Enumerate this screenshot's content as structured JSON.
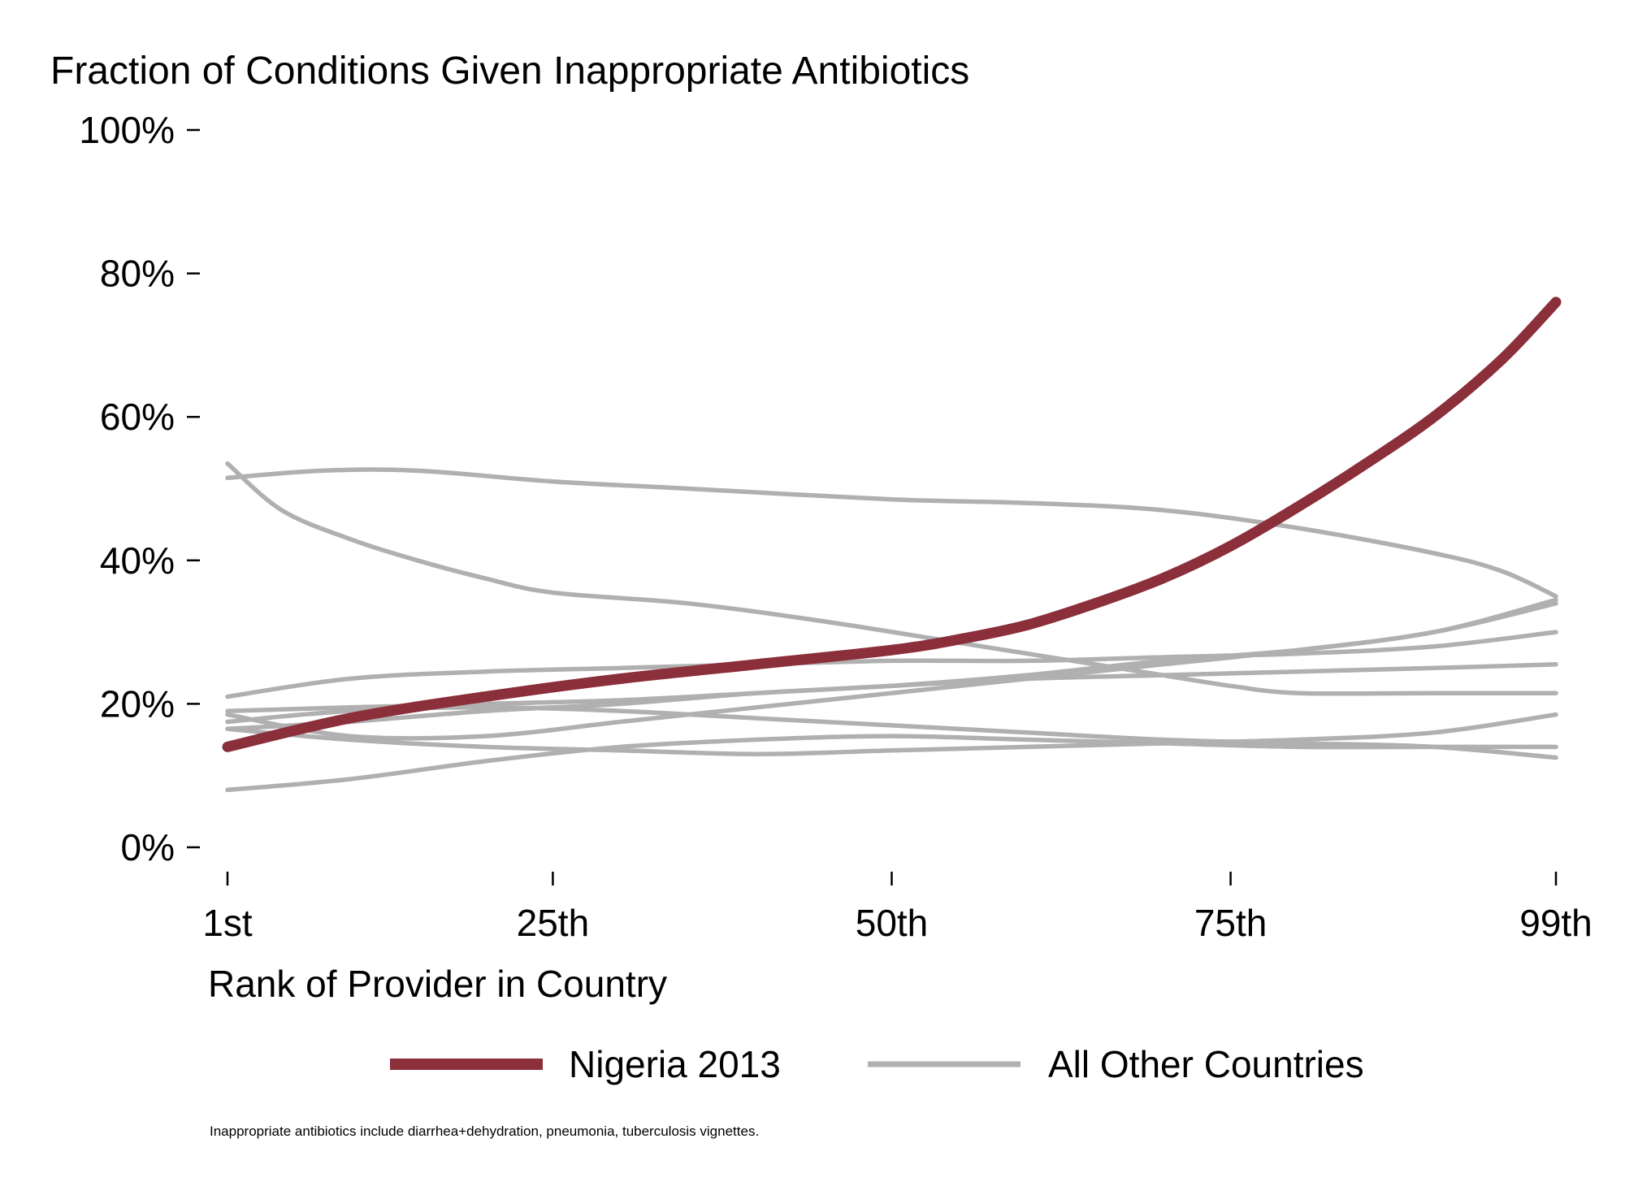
{
  "chart_data": {
    "type": "line",
    "title": "Fraction of Conditions Given Inappropriate Antibiotics",
    "xlabel": "Rank of Provider in Country",
    "ylabel": "",
    "xlim": [
      1,
      99
    ],
    "ylim": [
      0,
      1
    ],
    "x_ticks": [
      {
        "value": 1,
        "label": "1st"
      },
      {
        "value": 25,
        "label": "25th"
      },
      {
        "value": 50,
        "label": "50th"
      },
      {
        "value": 75,
        "label": "75th"
      },
      {
        "value": 99,
        "label": "99th"
      }
    ],
    "y_ticks": [
      {
        "value": 0,
        "label": "0%"
      },
      {
        "value": 0.2,
        "label": "20%"
      },
      {
        "value": 0.4,
        "label": "40%"
      },
      {
        "value": 0.6,
        "label": "60%"
      },
      {
        "value": 0.8,
        "label": "80%"
      },
      {
        "value": 1.0,
        "label": "100%"
      }
    ],
    "grid": false,
    "legend_position": "bottom",
    "legend": [
      {
        "label": "Nigeria 2013",
        "color": "#8b2f3a"
      },
      {
        "label": "All Other Countries",
        "color": "#b0b0b0"
      }
    ],
    "highlight": {
      "legend_label": "Nigeria 2013",
      "color": "#8b2f3a",
      "x": [
        1,
        10,
        20,
        30,
        40,
        50,
        55,
        60,
        65,
        70,
        75,
        80,
        85,
        90,
        95,
        99
      ],
      "y": [
        0.14,
        0.18,
        0.21,
        0.235,
        0.255,
        0.275,
        0.29,
        0.31,
        0.34,
        0.375,
        0.42,
        0.475,
        0.535,
        0.6,
        0.68,
        0.76
      ]
    },
    "other_series": {
      "legend_label": "All Other Countries",
      "color": "#b0b0b0",
      "series": [
        {
          "x": [
            1,
            8,
            15,
            25,
            35,
            50,
            60,
            70,
            80,
            90,
            95,
            99
          ],
          "y": [
            0.515,
            0.525,
            0.525,
            0.51,
            0.5,
            0.485,
            0.48,
            0.47,
            0.445,
            0.41,
            0.385,
            0.35
          ]
        },
        {
          "x": [
            1,
            5,
            10,
            15,
            20,
            25,
            35,
            45,
            55,
            65,
            70,
            75,
            80,
            90,
            99
          ],
          "y": [
            0.535,
            0.47,
            0.43,
            0.4,
            0.375,
            0.355,
            0.34,
            0.315,
            0.285,
            0.255,
            0.24,
            0.225,
            0.215,
            0.215,
            0.215
          ]
        },
        {
          "x": [
            1,
            10,
            20,
            30,
            40,
            50,
            60,
            70,
            80,
            90,
            99
          ],
          "y": [
            0.21,
            0.235,
            0.245,
            0.25,
            0.255,
            0.26,
            0.26,
            0.265,
            0.27,
            0.28,
            0.3
          ]
        },
        {
          "x": [
            1,
            10,
            20,
            30,
            40,
            50,
            60,
            70,
            80,
            90,
            99
          ],
          "y": [
            0.19,
            0.195,
            0.2,
            0.205,
            0.215,
            0.225,
            0.235,
            0.24,
            0.245,
            0.25,
            0.255
          ]
        },
        {
          "x": [
            1,
            10,
            20,
            30,
            40,
            50,
            60,
            70,
            80,
            90,
            99
          ],
          "y": [
            0.185,
            0.155,
            0.155,
            0.175,
            0.195,
            0.215,
            0.235,
            0.255,
            0.275,
            0.3,
            0.345
          ]
        },
        {
          "x": [
            1,
            10,
            20,
            30,
            40,
            50,
            60,
            70,
            80,
            90,
            99
          ],
          "y": [
            0.165,
            0.175,
            0.19,
            0.2,
            0.215,
            0.225,
            0.24,
            0.26,
            0.275,
            0.3,
            0.34
          ]
        },
        {
          "x": [
            1,
            10,
            20,
            30,
            40,
            50,
            60,
            70,
            80,
            90,
            99
          ],
          "y": [
            0.175,
            0.19,
            0.195,
            0.19,
            0.18,
            0.17,
            0.16,
            0.15,
            0.145,
            0.14,
            0.125
          ]
        },
        {
          "x": [
            1,
            10,
            20,
            30,
            40,
            50,
            60,
            70,
            80,
            90,
            99
          ],
          "y": [
            0.165,
            0.15,
            0.14,
            0.135,
            0.13,
            0.135,
            0.14,
            0.145,
            0.15,
            0.16,
            0.185
          ]
        },
        {
          "x": [
            1,
            10,
            20,
            30,
            40,
            50,
            60,
            70,
            80,
            90,
            99
          ],
          "y": [
            0.08,
            0.095,
            0.12,
            0.14,
            0.15,
            0.155,
            0.15,
            0.145,
            0.14,
            0.14,
            0.14
          ]
        }
      ]
    },
    "footnote": "Inappropriate antibiotics include diarrhea+dehydration, pneumonia, tuberculosis vignettes."
  }
}
